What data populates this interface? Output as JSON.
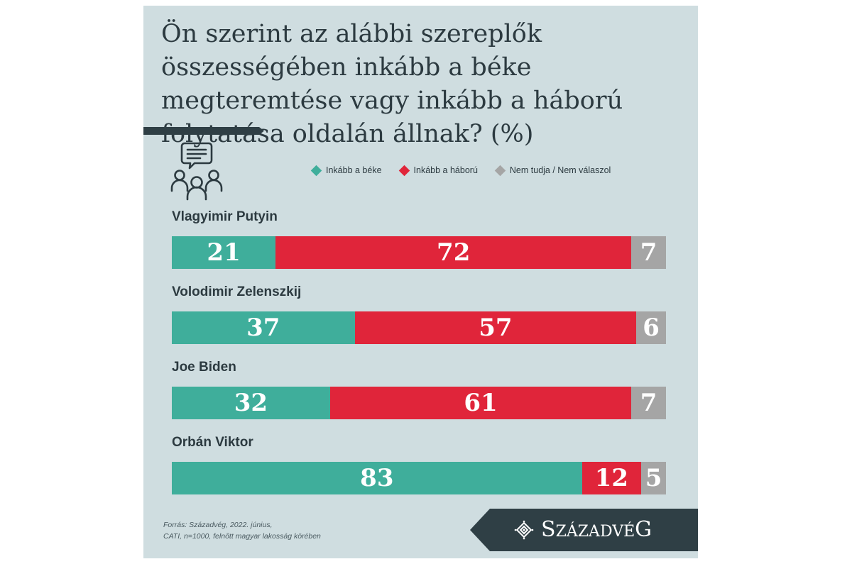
{
  "title": "Ön szerint az alábbi szereplők összességében inkább a béke megteremtése vagy inkább a háború folytatása oldalán állnak? (%)",
  "legend": [
    {
      "label": "Inkább a béke",
      "color": "#3fae9b"
    },
    {
      "label": "Inkább a háború",
      "color": "#e0253a"
    },
    {
      "label": "Nem tudja / Nem válaszol",
      "color": "#a5a5a5"
    }
  ],
  "chart_data": {
    "type": "bar",
    "stacked": true,
    "orientation": "horizontal",
    "title": "Ön szerint az alábbi szereplők összességében inkább a béke megteremtése vagy inkább a háború folytatása oldalán állnak? (%)",
    "categories": [
      "Vlagyimir Putyin",
      "Volodimir Zelenszkij",
      "Joe Biden",
      "Orbán Viktor"
    ],
    "series": [
      {
        "name": "Inkább a béke",
        "color": "#3fae9b",
        "values": [
          21,
          37,
          32,
          83
        ]
      },
      {
        "name": "Inkább a háború",
        "color": "#e0253a",
        "values": [
          72,
          57,
          61,
          12
        ]
      },
      {
        "name": "Nem tudja / Nem válaszol",
        "color": "#a5a5a5",
        "values": [
          7,
          6,
          7,
          5
        ]
      }
    ],
    "xlim": [
      0,
      100
    ],
    "grid": false,
    "legend_position": "top"
  },
  "source": {
    "line1": "Forrás: Századvég, 2022. június,",
    "line2": "CATI, n=1000, felnőtt magyar lakosság körében"
  },
  "logo": {
    "text": "SZÁZADVÉG",
    "icon": "szazadveg-logo-icon"
  },
  "icons": {
    "people": "people-discussion-icon"
  }
}
